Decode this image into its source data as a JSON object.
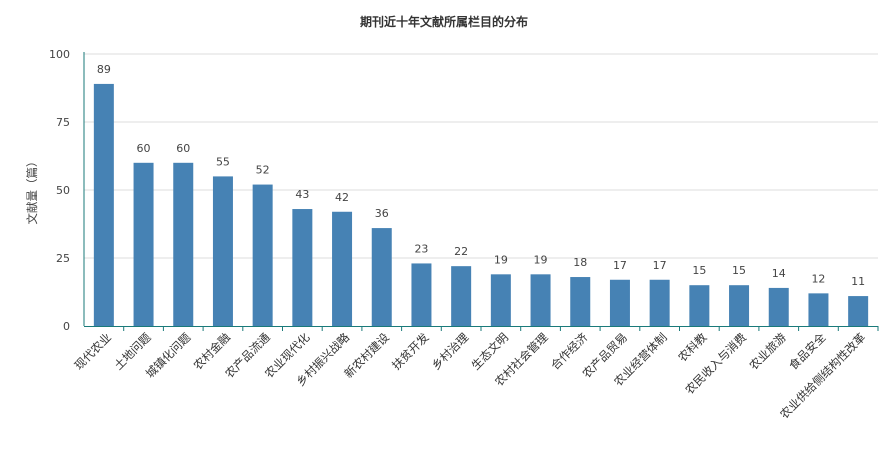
{
  "chart_data": {
    "type": "bar",
    "title": "期刊近十年文献所属栏目的分布",
    "xlabel": "",
    "ylabel": "文献量（篇）",
    "ylim": [
      0,
      100
    ],
    "yticks": [
      0,
      25,
      50,
      75,
      100
    ],
    "grid": true,
    "color": "#4682b4",
    "categories": [
      "现代农业",
      "土地问题",
      "城镇化问题",
      "农村金融",
      "农产品流通",
      "农业现代化",
      "乡村振兴战略",
      "新农村建设",
      "扶贫开发",
      "乡村治理",
      "生态文明",
      "农村社会管理",
      "合作经济",
      "农产品贸易",
      "农业经营体制",
      "农科教",
      "农民收入与消费",
      "农业旅游",
      "食品安全",
      "农业供给侧结构性改革"
    ],
    "values": [
      89,
      60,
      60,
      55,
      52,
      43,
      42,
      36,
      23,
      22,
      19,
      19,
      18,
      17,
      17,
      15,
      15,
      14,
      12,
      11
    ]
  }
}
